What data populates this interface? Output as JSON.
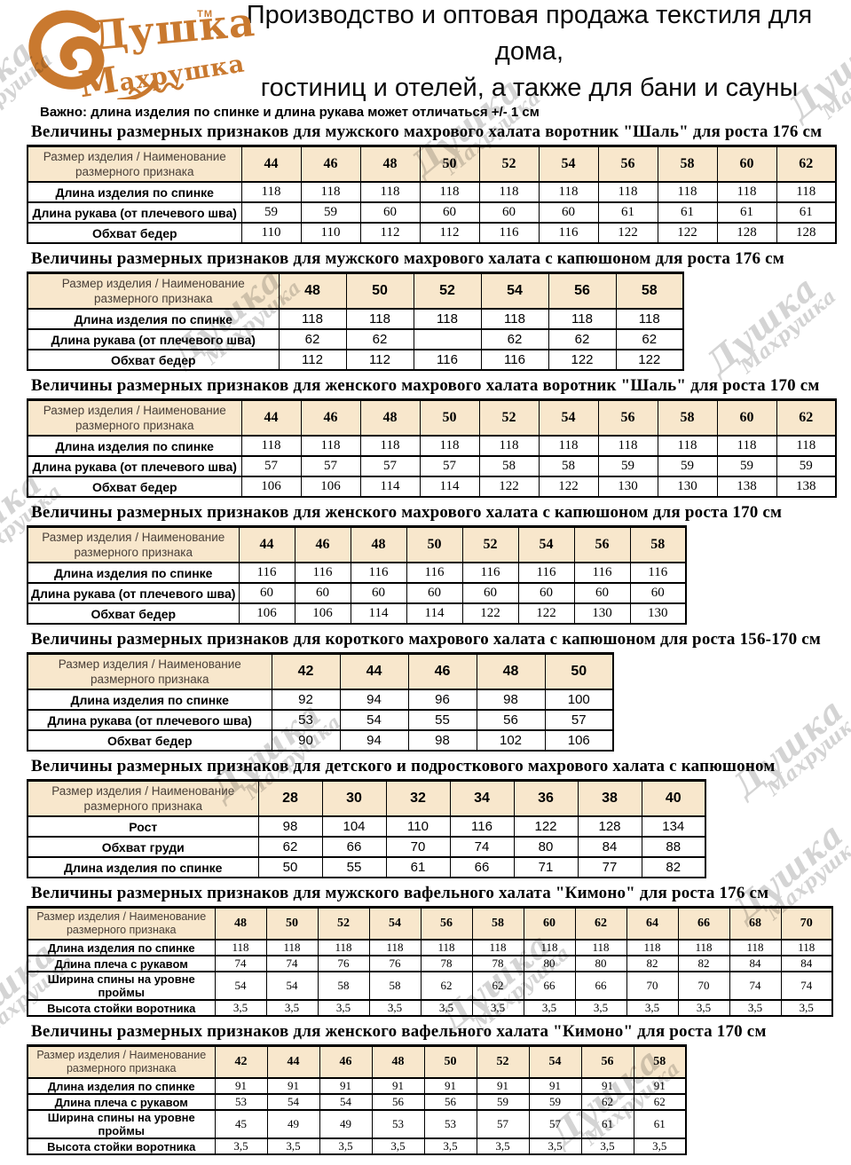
{
  "brand": {
    "line1": "Душка",
    "line2": "Махрушка",
    "tm": "TM"
  },
  "header": {
    "line1": "Производство и оптовая продажа текстиля для дома,",
    "line2": "гостиниц и отелей, а также для бани и сауны"
  },
  "note": "Важно: длина изделия по спинке и длина рукава  может отличаться +/- 1 см",
  "corner_label": "Размер изделия / Наименование размерного признака",
  "watermark_text": {
    "line1": "Душка",
    "line2": "Махрушка"
  },
  "colors": {
    "brand_orange": "#c9792f",
    "header_beige": "#f8e7cc",
    "watermark_gray": "#c9c9c9"
  },
  "tables": [
    {
      "title": "Величины размерных признаков для мужского  махрового халата воротник \"Шаль\"  для роста 176 см",
      "sizes": [
        "44",
        "46",
        "48",
        "50",
        "52",
        "54",
        "56",
        "58",
        "60",
        "62"
      ],
      "rows": [
        {
          "label": "Длина изделия по спинке",
          "values": [
            "118",
            "118",
            "118",
            "118",
            "118",
            "118",
            "118",
            "118",
            "118",
            "118"
          ]
        },
        {
          "label": "Длина рукава (от плечевого шва)",
          "values": [
            "59",
            "59",
            "60",
            "60",
            "60",
            "60",
            "61",
            "61",
            "61",
            "61"
          ]
        },
        {
          "label": "Обхват бедер",
          "values": [
            "110",
            "110",
            "112",
            "112",
            "116",
            "116",
            "122",
            "122",
            "128",
            "128"
          ]
        }
      ]
    },
    {
      "title": "Величины размерных признаков для мужского  махрового халата с капюшоном  для роста 176 см",
      "sizes": [
        "48",
        "50",
        "52",
        "54",
        "56",
        "58"
      ],
      "rows": [
        {
          "label": "Длина изделия по спинке",
          "values": [
            "118",
            "118",
            "118",
            "118",
            "118",
            "118"
          ]
        },
        {
          "label": "Длина рукава (от плечевого шва)",
          "values": [
            "62",
            "62",
            "",
            "62",
            "62",
            "62"
          ]
        },
        {
          "label": "Обхват бедер",
          "values": [
            "112",
            "112",
            "116",
            "116",
            "122",
            "122"
          ]
        }
      ]
    },
    {
      "title": "Величины размерных признаков для женского  махрового халата воротник \"Шаль\"  для роста 170 см",
      "sizes": [
        "44",
        "46",
        "48",
        "50",
        "52",
        "54",
        "56",
        "58",
        "60",
        "62"
      ],
      "rows": [
        {
          "label": "Длина изделия по спинке",
          "values": [
            "118",
            "118",
            "118",
            "118",
            "118",
            "118",
            "118",
            "118",
            "118",
            "118"
          ]
        },
        {
          "label": "Длина рукава (от плечевого шва)",
          "values": [
            "57",
            "57",
            "57",
            "57",
            "58",
            "58",
            "59",
            "59",
            "59",
            "59"
          ]
        },
        {
          "label": "Обхват бедер",
          "values": [
            "106",
            "106",
            "114",
            "114",
            "122",
            "122",
            "130",
            "130",
            "138",
            "138"
          ]
        }
      ]
    },
    {
      "title": "Величины размерных признаков для женского  махрового халата с капюшоном для роста 170 см",
      "sizes": [
        "44",
        "46",
        "48",
        "50",
        "52",
        "54",
        "56",
        "58"
      ],
      "rows": [
        {
          "label": "Длина изделия по спинке",
          "values": [
            "116",
            "116",
            "116",
            "116",
            "116",
            "116",
            "116",
            "116"
          ]
        },
        {
          "label": "Длина рукава (от плечевого шва)",
          "values": [
            "60",
            "60",
            "60",
            "60",
            "60",
            "60",
            "60",
            "60"
          ]
        },
        {
          "label": "Обхват бедер",
          "values": [
            "106",
            "106",
            "114",
            "114",
            "122",
            "122",
            "130",
            "130"
          ]
        }
      ]
    },
    {
      "title": "Величины размерных признаков для короткого  махрового халата с капюшоном для роста 156-170 см",
      "sizes": [
        "42",
        "44",
        "46",
        "48",
        "50"
      ],
      "rows": [
        {
          "label": "Длина изделия по спинке",
          "values": [
            "92",
            "94",
            "96",
            "98",
            "100"
          ]
        },
        {
          "label": "Длина рукава (от плечевого шва)",
          "values": [
            "53",
            "54",
            "55",
            "56",
            "57"
          ]
        },
        {
          "label": "Обхват бедер",
          "values": [
            "90",
            "94",
            "98",
            "102",
            "106"
          ]
        }
      ]
    },
    {
      "title": "Величины размерных признаков для детского и подросткового  махрового халата с капюшоном",
      "sizes": [
        "28",
        "30",
        "32",
        "34",
        "36",
        "38",
        "40"
      ],
      "rows": [
        {
          "label": "Рост",
          "values": [
            "98",
            "104",
            "110",
            "116",
            "122",
            "128",
            "134"
          ]
        },
        {
          "label": "Обхват груди",
          "values": [
            "62",
            "66",
            "70",
            "74",
            "80",
            "84",
            "88"
          ]
        },
        {
          "label": "Длина изделия по спинке",
          "values": [
            "50",
            "55",
            "61",
            "66",
            "71",
            "77",
            "82"
          ]
        }
      ]
    },
    {
      "title": "Величины размерных признаков для мужского  вафельного халата  \"Кимоно\"  для роста 176 см",
      "sizes": [
        "48",
        "50",
        "52",
        "54",
        "56",
        "58",
        "60",
        "62",
        "64",
        "66",
        "68",
        "70"
      ],
      "rows": [
        {
          "label": "Длина изделия по спинке",
          "values": [
            "118",
            "118",
            "118",
            "118",
            "118",
            "118",
            "118",
            "118",
            "118",
            "118",
            "118",
            "118"
          ]
        },
        {
          "label": "Длина плеча с рукавом",
          "values": [
            "74",
            "74",
            "76",
            "76",
            "78",
            "78",
            "80",
            "80",
            "82",
            "82",
            "84",
            "84"
          ]
        },
        {
          "label": "Ширина спины на уровне проймы",
          "values": [
            "54",
            "54",
            "58",
            "58",
            "62",
            "62",
            "66",
            "66",
            "70",
            "70",
            "74",
            "74"
          ]
        },
        {
          "label": "Высота стойки воротника",
          "values": [
            "3,5",
            "3,5",
            "3,5",
            "3,5",
            "3,5",
            "3,5",
            "3,5",
            "3,5",
            "3,5",
            "3,5",
            "3,5",
            "3,5"
          ]
        }
      ]
    },
    {
      "title": "Величины размерных признаков для женского  вафельного халата  \"Кимоно\"  для роста 170 см",
      "sizes": [
        "42",
        "44",
        "46",
        "48",
        "50",
        "52",
        "54",
        "56",
        "58"
      ],
      "rows": [
        {
          "label": "Длина изделия по спинке",
          "values": [
            "91",
            "91",
            "91",
            "91",
            "91",
            "91",
            "91",
            "91",
            "91"
          ]
        },
        {
          "label": "Длина плеча с рукавом",
          "values": [
            "53",
            "54",
            "54",
            "56",
            "56",
            "59",
            "59",
            "62",
            "62"
          ]
        },
        {
          "label": "Ширина спины на уровне проймы",
          "values": [
            "45",
            "49",
            "49",
            "53",
            "53",
            "57",
            "57",
            "61",
            "61"
          ]
        },
        {
          "label": "Высота стойки воротника",
          "values": [
            "3,5",
            "3,5",
            "3,5",
            "3,5",
            "3,5",
            "3,5",
            "3,5",
            "3,5",
            "3,5"
          ]
        }
      ]
    }
  ]
}
